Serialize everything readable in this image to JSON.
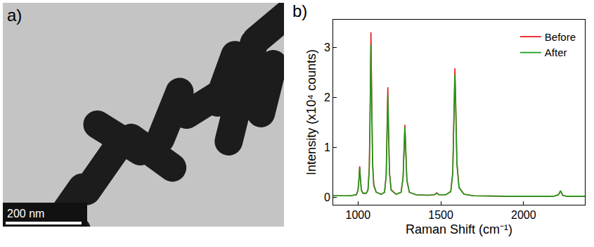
{
  "panel_labels": [
    "a)",
    "b)"
  ],
  "image": {
    "scale_bar": "200 nm"
  },
  "chart_data": {
    "type": "line",
    "x_label": "Raman Shift (cm⁻¹)",
    "y_label": "Intensity (x10⁴ counts)",
    "x": [
      850,
      900,
      950,
      990,
      1000,
      1005,
      1010,
      1015,
      1020,
      1030,
      1050,
      1060,
      1068,
      1073,
      1078,
      1083,
      1088,
      1095,
      1110,
      1140,
      1160,
      1170,
      1176,
      1180,
      1184,
      1190,
      1200,
      1230,
      1260,
      1272,
      1278,
      1283,
      1288,
      1295,
      1310,
      1350,
      1420,
      1460,
      1470,
      1475,
      1480,
      1490,
      1530,
      1560,
      1572,
      1580,
      1585,
      1590,
      1597,
      1610,
      1640,
      1700,
      1800,
      1900,
      2000,
      2100,
      2180,
      2210,
      2218,
      2223,
      2228,
      2236,
      2260,
      2300,
      2370
    ],
    "series": [
      {
        "name": "Before",
        "color": "#e8191c",
        "values": [
          0.03,
          0.03,
          0.03,
          0.05,
          0.15,
          0.35,
          0.62,
          0.35,
          0.15,
          0.08,
          0.08,
          0.15,
          0.6,
          1.8,
          3.3,
          1.9,
          0.7,
          0.25,
          0.1,
          0.06,
          0.1,
          0.45,
          1.4,
          2.2,
          1.4,
          0.5,
          0.15,
          0.06,
          0.1,
          0.4,
          1.0,
          1.45,
          1.0,
          0.35,
          0.1,
          0.05,
          0.04,
          0.05,
          0.07,
          0.09,
          0.07,
          0.05,
          0.05,
          0.12,
          0.5,
          1.8,
          2.58,
          1.9,
          0.7,
          0.2,
          0.06,
          0.03,
          0.02,
          0.02,
          0.02,
          0.02,
          0.02,
          0.05,
          0.1,
          0.13,
          0.1,
          0.04,
          0.02,
          0.02,
          0.02
        ]
      },
      {
        "name": "After",
        "color": "#1a9c1a",
        "values": [
          0.03,
          0.03,
          0.03,
          0.05,
          0.14,
          0.33,
          0.6,
          0.33,
          0.14,
          0.08,
          0.08,
          0.14,
          0.55,
          1.65,
          3.05,
          1.75,
          0.65,
          0.23,
          0.1,
          0.06,
          0.1,
          0.42,
          1.3,
          2.05,
          1.3,
          0.47,
          0.14,
          0.06,
          0.1,
          0.38,
          0.95,
          1.4,
          0.95,
          0.33,
          0.1,
          0.05,
          0.04,
          0.05,
          0.07,
          0.08,
          0.07,
          0.05,
          0.05,
          0.11,
          0.47,
          1.7,
          2.45,
          1.8,
          0.66,
          0.19,
          0.06,
          0.03,
          0.02,
          0.02,
          0.02,
          0.02,
          0.02,
          0.05,
          0.09,
          0.12,
          0.09,
          0.04,
          0.02,
          0.02,
          0.02
        ]
      }
    ],
    "xlim": [
      850,
      2370
    ],
    "ylim": [
      -0.15,
      3.55
    ],
    "xticks": [
      1000,
      1500,
      2000
    ],
    "yticks": [
      0,
      1,
      2,
      3
    ],
    "grid": false,
    "legend": "top-right"
  }
}
